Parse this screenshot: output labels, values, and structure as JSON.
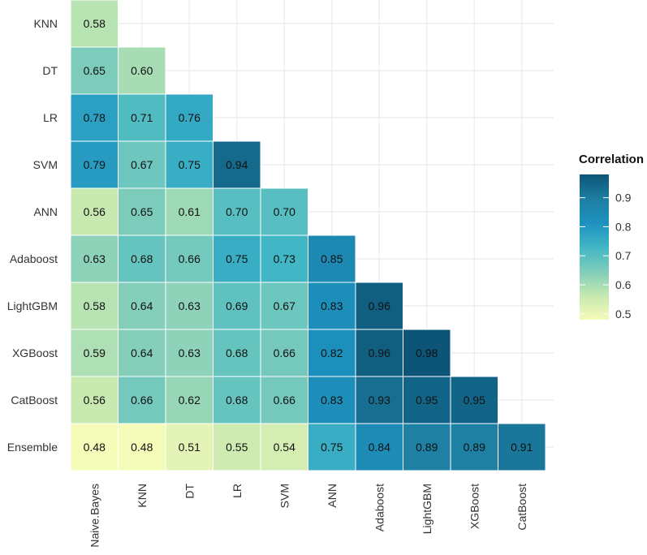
{
  "chart_data": {
    "type": "heatmap",
    "title": "",
    "xlabel": "",
    "ylabel": "",
    "x_categories": [
      "Naive.Bayes",
      "KNN",
      "DT",
      "LR",
      "SVM",
      "ANN",
      "Adaboost",
      "LightGBM",
      "XGBoost",
      "CatBoost"
    ],
    "y_categories": [
      "KNN",
      "DT",
      "LR",
      "SVM",
      "ANN",
      "Adaboost",
      "LightGBM",
      "XGBoost",
      "CatBoost",
      "Ensemble"
    ],
    "values": [
      [
        0.58
      ],
      [
        0.65,
        0.6
      ],
      [
        0.78,
        0.71,
        0.76
      ],
      [
        0.79,
        0.67,
        0.75,
        0.94
      ],
      [
        0.56,
        0.65,
        0.61,
        0.7,
        0.7
      ],
      [
        0.63,
        0.68,
        0.66,
        0.75,
        0.73,
        0.85
      ],
      [
        0.58,
        0.64,
        0.63,
        0.69,
        0.67,
        0.83,
        0.96
      ],
      [
        0.59,
        0.64,
        0.63,
        0.68,
        0.66,
        0.82,
        0.96,
        0.98
      ],
      [
        0.56,
        0.66,
        0.62,
        0.68,
        0.66,
        0.83,
        0.93,
        0.95,
        0.95
      ],
      [
        0.48,
        0.48,
        0.51,
        0.55,
        0.54,
        0.75,
        0.84,
        0.89,
        0.89,
        0.91
      ]
    ],
    "value_labels": [
      [
        "0.58"
      ],
      [
        "0.65",
        "0.60"
      ],
      [
        "0.78",
        "0.71",
        "0.76"
      ],
      [
        "0.79",
        "0.67",
        "0.75",
        "0.94"
      ],
      [
        "0.56",
        "0.65",
        "0.61",
        "0.70",
        "0.70"
      ],
      [
        "0.63",
        "0.68",
        "0.66",
        "0.75",
        "0.73",
        "0.85"
      ],
      [
        "0.58",
        "0.64",
        "0.63",
        "0.69",
        "0.67",
        "0.83",
        "0.96"
      ],
      [
        "0.59",
        "0.64",
        "0.63",
        "0.68",
        "0.66",
        "0.82",
        "0.96",
        "0.98"
      ],
      [
        "0.56",
        "0.66",
        "0.62",
        "0.68",
        "0.66",
        "0.83",
        "0.93",
        "0.95",
        "0.95"
      ],
      [
        "0.48",
        "0.48",
        "0.51",
        "0.55",
        "0.54",
        "0.75",
        "0.84",
        "0.89",
        "0.89",
        "0.91"
      ]
    ],
    "color_scale": {
      "domain": [
        0.48,
        0.98
      ],
      "colors": [
        "#f5fbb9",
        "#c6e8b0",
        "#7fcdbb",
        "#41b6c4",
        "#1d91c0",
        "#1e7ea0",
        "#0c5577"
      ]
    },
    "legend": {
      "title": "Correlation",
      "position": "right",
      "ticks": [
        0.5,
        0.6,
        0.7,
        0.8,
        0.9
      ],
      "tick_labels": [
        "0.5",
        "0.6",
        "0.7",
        "0.8",
        "0.9"
      ]
    }
  }
}
